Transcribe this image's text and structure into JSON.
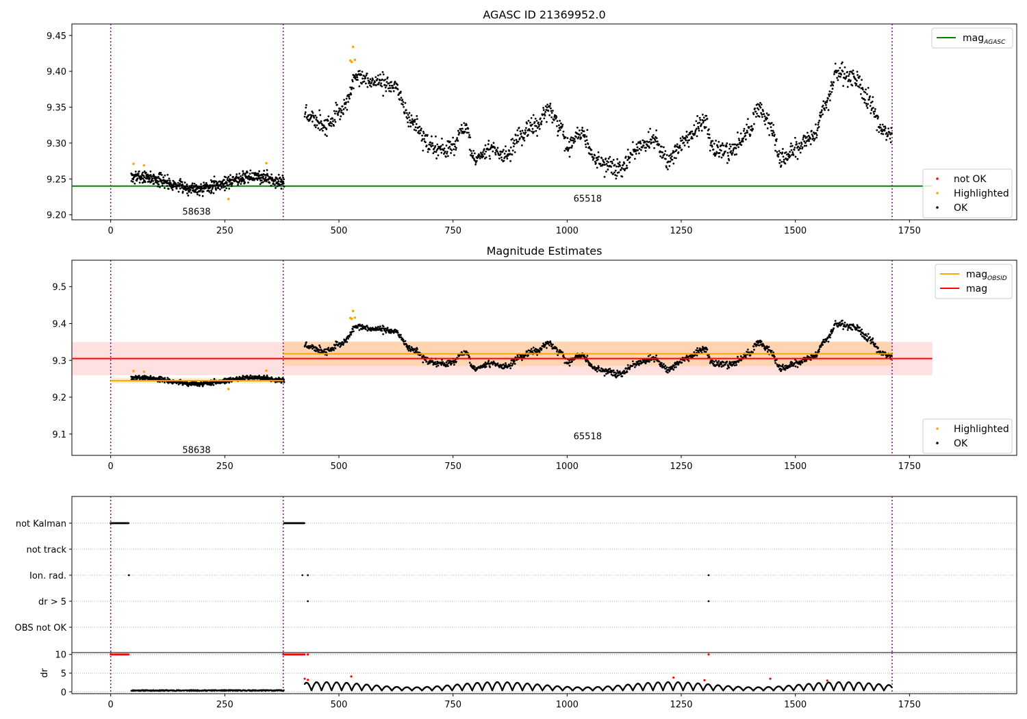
{
  "chart_data": [
    {
      "type": "scatter",
      "title": "AGASC ID 21369952.0",
      "xlim": [
        -85,
        1985
      ],
      "ylim": [
        9.193,
        9.466
      ],
      "xticks": [
        0,
        250,
        500,
        750,
        1000,
        1250,
        1500,
        1750
      ],
      "yticks": [
        9.2,
        9.25,
        9.3,
        9.35,
        9.4,
        9.45
      ],
      "ytick_labels": [
        "9.20",
        "9.25",
        "9.30",
        "9.35",
        "9.40",
        "9.45"
      ],
      "obsid_boundaries": [
        0,
        378,
        1712
      ],
      "obsid_labels": [
        {
          "text": "58638",
          "x": 188,
          "y": 9.205
        },
        {
          "text": "65518",
          "x": 1045,
          "y": 9.223
        }
      ],
      "lines": [
        {
          "name": "mag_AGASC",
          "color": "#008000",
          "x": [
            -85,
            1800
          ],
          "y": [
            9.24,
            9.24
          ]
        }
      ],
      "segments": [
        {
          "x0": 45,
          "x1": 380,
          "base": 9.245,
          "amp": 0.008,
          "noise": 0.009
        },
        {
          "x0": 425,
          "x1": 1712,
          "trend": "variable",
          "noise": 0.012
        }
      ],
      "highlighted": [
        {
          "x": 50,
          "y": 9.271
        },
        {
          "x": 73,
          "y": 9.269
        },
        {
          "x": 258,
          "y": 9.222
        },
        {
          "x": 341,
          "y": 9.272
        },
        {
          "x": 525,
          "y": 9.415
        },
        {
          "x": 528,
          "y": 9.413
        },
        {
          "x": 531,
          "y": 9.434
        },
        {
          "x": 535,
          "y": 9.416
        }
      ],
      "legend_upper": {
        "loc": "upper right",
        "entries": [
          {
            "label": "mag",
            "sub": "AGASC",
            "color": "#008000",
            "kind": "line"
          }
        ]
      },
      "legend_lower": {
        "loc": "lower right",
        "entries": [
          {
            "label": "not OK",
            "color": "#ff0000",
            "kind": "dot"
          },
          {
            "label": "Highlighted",
            "color": "#ffa500",
            "kind": "dot"
          },
          {
            "label": "OK",
            "color": "#000000",
            "kind": "dot"
          }
        ]
      },
      "colors": {
        "ok": "#000000",
        "highlighted": "#ffa500",
        "not_ok": "#ff0000",
        "boundary": "#800080"
      }
    },
    {
      "type": "scatter",
      "title": "Magnitude Estimates",
      "xlim": [
        -85,
        1985
      ],
      "ylim": [
        9.042,
        9.572
      ],
      "xticks": [
        0,
        250,
        500,
        750,
        1000,
        1250,
        1500,
        1750
      ],
      "yticks": [
        9.1,
        9.2,
        9.3,
        9.4,
        9.5
      ],
      "ytick_labels": [
        "9.1",
        "9.2",
        "9.3",
        "9.4",
        "9.5"
      ],
      "obsid_boundaries": [
        0,
        378,
        1712
      ],
      "obsid_labels": [
        {
          "text": "58638",
          "x": 188,
          "y": 9.058
        },
        {
          "text": "65518",
          "x": 1045,
          "y": 9.095
        }
      ],
      "bands": [
        {
          "x0": -85,
          "x1": 1800,
          "y0": 9.26,
          "y1": 9.35,
          "color": "#ff0000",
          "opacity": 0.12
        },
        {
          "x0": 0,
          "x1": 378,
          "y0": 9.237,
          "y1": 9.253,
          "color": "#ffa500",
          "opacity": 0.2
        },
        {
          "x0": 378,
          "x1": 1712,
          "y0": 9.285,
          "y1": 9.352,
          "color": "#ffa500",
          "opacity": 0.2
        }
      ],
      "lines": [
        {
          "name": "mag",
          "color": "#ff0000",
          "x": [
            -85,
            1800
          ],
          "y": [
            9.305,
            9.305
          ]
        },
        {
          "name": "mag_OBSID",
          "color": "#ffa500",
          "x": [
            0,
            378
          ],
          "y": [
            9.245,
            9.245
          ]
        },
        {
          "name": "mag_OBSID",
          "color": "#ffa500",
          "x": [
            378,
            1712
          ],
          "y": [
            9.318,
            9.318
          ]
        }
      ],
      "legend_upper": {
        "loc": "upper right",
        "entries": [
          {
            "label": "mag",
            "sub": "OBSID",
            "color": "#ffa500",
            "kind": "line"
          },
          {
            "label": "mag",
            "sub": "",
            "color": "#ff0000",
            "kind": "line"
          }
        ]
      },
      "legend_lower": {
        "loc": "lower right",
        "entries": [
          {
            "label": "Highlighted",
            "color": "#ffa500",
            "kind": "dot"
          },
          {
            "label": "OK",
            "color": "#000000",
            "kind": "dot"
          }
        ]
      }
    },
    {
      "type": "scatter",
      "title": "",
      "xlim": [
        -85,
        1985
      ],
      "categories": [
        "not Kalman",
        "not track",
        "Ion. rad.",
        "dr > 5",
        "OBS not OK"
      ],
      "flag_segments": [
        {
          "category": "not Kalman",
          "x0": 0,
          "x1": 40
        },
        {
          "category": "not Kalman",
          "x0": 380,
          "x1": 425
        }
      ],
      "flag_points": [
        {
          "category": "Ion. rad.",
          "x": 40
        },
        {
          "category": "Ion. rad.",
          "x": 420
        },
        {
          "category": "Ion. rad.",
          "x": 432
        },
        {
          "category": "Ion. rad.",
          "x": 1310
        },
        {
          "category": "dr > 5",
          "x": 432
        },
        {
          "category": "dr > 5",
          "x": 1310
        }
      ]
    },
    {
      "type": "scatter",
      "title": "",
      "ylabel": "dr",
      "xlim": [
        -85,
        1985
      ],
      "ylim": [
        -0.5,
        10.5
      ],
      "xticks": [
        0,
        250,
        500,
        750,
        1000,
        1250,
        1500,
        1750
      ],
      "yticks": [
        0,
        5,
        10
      ],
      "ytick_labels": [
        "0",
        "5",
        "10"
      ],
      "red_segments_at_10": [
        [
          0,
          40
        ],
        [
          378,
          425
        ]
      ],
      "red_points_at_10": [
        432,
        1310
      ],
      "red_ranges": [
        [
          420,
          435
        ],
        [
          520,
          532
        ],
        [
          1228,
          1240
        ],
        [
          1295,
          1305
        ],
        [
          1440,
          1455
        ],
        [
          1565,
          1575
        ]
      ],
      "red_points": [
        {
          "x": 425,
          "y": 3.5
        },
        {
          "x": 432,
          "y": 3.2
        },
        {
          "x": 527,
          "y": 4.1
        },
        {
          "x": 1233,
          "y": 3.8
        },
        {
          "x": 1301,
          "y": 3.1
        },
        {
          "x": 1445,
          "y": 3.5
        },
        {
          "x": 1570,
          "y": 3.0
        }
      ]
    }
  ]
}
